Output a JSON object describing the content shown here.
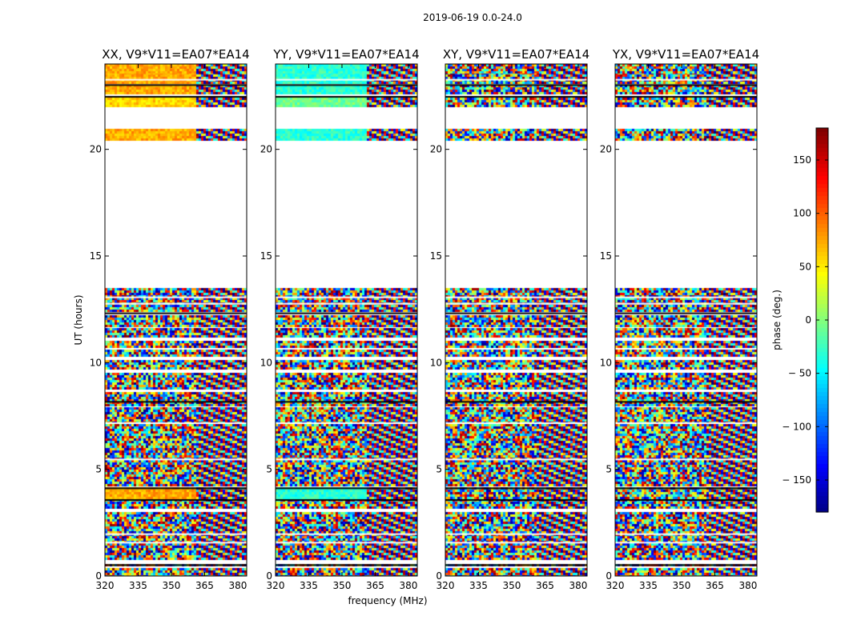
{
  "figure_title": "2019-06-19 0.0-24.0",
  "chart_data": {
    "type": "heatmap",
    "x_label": "frequency (MHz)",
    "y_label": "UT (hours)",
    "xlim": [
      320,
      384
    ],
    "ylim": [
      0,
      24
    ],
    "x_ticks": [
      320,
      335,
      350,
      365,
      380
    ],
    "y_ticks": [
      0,
      5,
      10,
      15,
      20
    ],
    "panels": [
      {
        "name": "XX",
        "title": "XX, V9*V11=EA07*EA14",
        "calibrator_phase_deg": 75,
        "gains_band_phase_deg": 60
      },
      {
        "name": "YY",
        "title": "YY, V9*V11=EA07*EA14",
        "calibrator_phase_deg": -30,
        "gains_band_phase_deg": -5
      },
      {
        "name": "XY",
        "title": "XY, V9*V11=EA07*EA14",
        "calibrator_phase_deg": null,
        "gains_band_phase_deg": null
      },
      {
        "name": "YX",
        "title": "YX, V9*V11=EA07*EA14",
        "calibrator_phase_deg": null,
        "gains_band_phase_deg": null
      }
    ],
    "colorbar": {
      "label": "phase (deg.)",
      "range": [
        -180,
        180
      ],
      "ticks": [
        150,
        100,
        50,
        0,
        -50,
        -100,
        -150
      ],
      "tick_labels": [
        "150",
        "100",
        "50",
        "0",
        "− 50",
        "− 100",
        "− 150"
      ],
      "colormap": "jet"
    },
    "data_segments_ut": [
      [
        0.0,
        0.35,
        "noise"
      ],
      [
        0.45,
        0.55,
        "noise"
      ],
      [
        0.75,
        3.0,
        "noise"
      ],
      [
        3.2,
        3.6,
        "noise"
      ],
      [
        3.6,
        3.8,
        "calibrator"
      ],
      [
        3.9,
        4.15,
        "calibrator"
      ],
      [
        4.25,
        7.9,
        "noise"
      ],
      [
        8.0,
        8.6,
        "noise"
      ],
      [
        8.8,
        9.5,
        "noise"
      ],
      [
        9.7,
        10.1,
        "noise"
      ],
      [
        10.3,
        10.6,
        "noise"
      ],
      [
        10.75,
        11.0,
        "noise"
      ],
      [
        11.2,
        11.6,
        "noise"
      ],
      [
        11.7,
        12.2,
        "noise"
      ],
      [
        12.4,
        13.5,
        "noise"
      ],
      [
        20.5,
        20.95,
        "calibrator"
      ],
      [
        22.0,
        22.4,
        "calibrator"
      ],
      [
        22.6,
        23.0,
        "calibrator"
      ],
      [
        23.1,
        23.6,
        "calibrator"
      ],
      [
        23.6,
        24.0,
        "calibrator"
      ]
    ],
    "blank_lines_ut": [
      1.6,
      2.0,
      5.5,
      7.2,
      12.8,
      13.1,
      23.3
    ],
    "black_lines_ut": [
      0.55,
      3.6,
      4.15,
      8.2,
      12.35,
      22.5,
      23.05
    ]
  }
}
